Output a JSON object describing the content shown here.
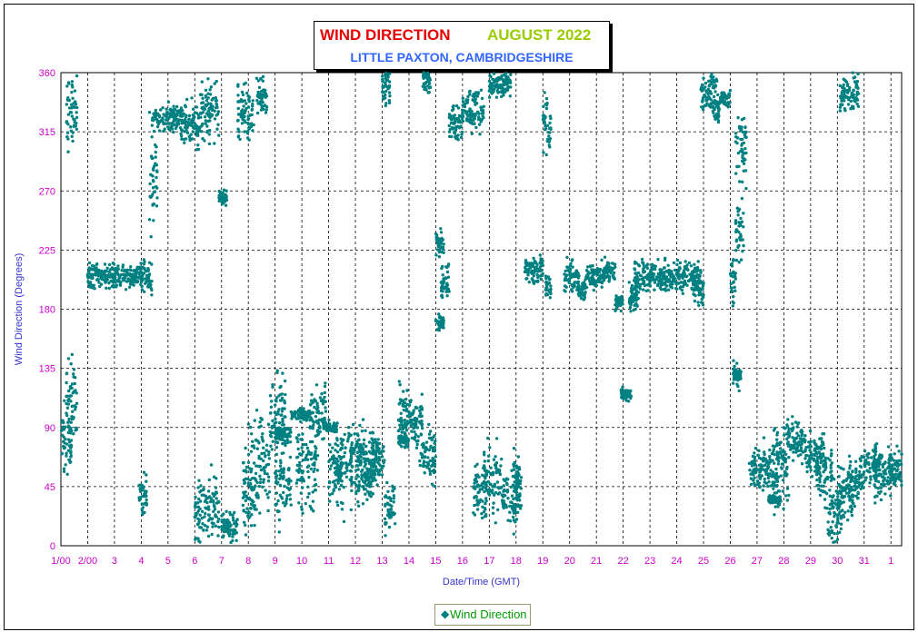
{
  "chart_data": {
    "type": "scatter",
    "title": "WIND DIRECTION",
    "title_month": "AUGUST 2022",
    "subtitle": "LITTLE PAXTON, CAMBRIDGESHIRE",
    "xlabel": "Date/Time (GMT)",
    "ylabel": "Wind Direction (Degrees)",
    "ylim": [
      0,
      360
    ],
    "yticks": [
      0,
      45,
      90,
      135,
      180,
      225,
      270,
      315,
      360
    ],
    "xlim": [
      1,
      32.4
    ],
    "xtick_labels": [
      "1/00",
      "2/00",
      "3",
      "4",
      "5",
      "6",
      "7",
      "8",
      "9",
      "10",
      "11",
      "12",
      "13",
      "14",
      "15",
      "16",
      "17",
      "18",
      "19",
      "20",
      "21",
      "22",
      "23",
      "24",
      "25",
      "26",
      "27",
      "28",
      "29",
      "30",
      "31",
      "1"
    ],
    "grid": true,
    "legend_position": "bottom-center",
    "series": [
      {
        "name": "Wind Direction",
        "color": "#008080",
        "clusters": [
          [
            1.0,
            1.4,
            80,
            25
          ],
          [
            1.2,
            1.6,
            110,
            30
          ],
          [
            1.2,
            1.6,
            330,
            25
          ],
          [
            2.0,
            3.0,
            205,
            10
          ],
          [
            3.0,
            4.0,
            205,
            8
          ],
          [
            4.0,
            4.4,
            205,
            12
          ],
          [
            3.9,
            4.2,
            40,
            15
          ],
          [
            4.3,
            4.6,
            280,
            40
          ],
          [
            4.4,
            5.5,
            325,
            10
          ],
          [
            5.5,
            6.2,
            320,
            15
          ],
          [
            6.2,
            6.9,
            330,
            25
          ],
          [
            6.0,
            6.9,
            30,
            25
          ],
          [
            6.9,
            7.2,
            265,
            5
          ],
          [
            7.0,
            7.6,
            15,
            10
          ],
          [
            7.6,
            8.2,
            330,
            20
          ],
          [
            7.8,
            8.2,
            40,
            30
          ],
          [
            8.0,
            8.8,
            60,
            35
          ],
          [
            8.3,
            8.7,
            340,
            15
          ],
          [
            8.8,
            9.4,
            100,
            30
          ],
          [
            9.0,
            9.6,
            85,
            5
          ],
          [
            9.0,
            9.6,
            50,
            30
          ],
          [
            9.6,
            10.3,
            100,
            5
          ],
          [
            9.8,
            10.6,
            60,
            30
          ],
          [
            10.3,
            10.9,
            100,
            20
          ],
          [
            10.8,
            11.3,
            90,
            3
          ],
          [
            11.0,
            11.5,
            60,
            30
          ],
          [
            11.3,
            11.9,
            60,
            30
          ],
          [
            11.8,
            12.4,
            70,
            20
          ],
          [
            12.0,
            12.6,
            55,
            25
          ],
          [
            12.4,
            12.9,
            60,
            20
          ],
          [
            12.6,
            13.1,
            70,
            15
          ],
          [
            13.0,
            13.3,
            350,
            15
          ],
          [
            13.1,
            13.5,
            30,
            20
          ],
          [
            13.6,
            14.0,
            100,
            20
          ],
          [
            13.6,
            14.0,
            80,
            5
          ],
          [
            14.0,
            14.5,
            95,
            20
          ],
          [
            14.4,
            15.0,
            70,
            20
          ],
          [
            14.5,
            14.8,
            360,
            15
          ],
          [
            15.0,
            15.3,
            170,
            5
          ],
          [
            15.0,
            15.3,
            230,
            10
          ],
          [
            15.2,
            15.5,
            200,
            15
          ],
          [
            15.5,
            16.0,
            320,
            15
          ],
          [
            16.0,
            16.8,
            330,
            15
          ],
          [
            16.4,
            16.9,
            40,
            20
          ],
          [
            16.8,
            17.5,
            50,
            25
          ],
          [
            17.0,
            17.8,
            350,
            10
          ],
          [
            17.5,
            18.2,
            35,
            20
          ],
          [
            17.9,
            18.2,
            55,
            15
          ],
          [
            18.3,
            19.0,
            210,
            10
          ],
          [
            19.0,
            19.3,
            320,
            20
          ],
          [
            19.1,
            19.3,
            195,
            10
          ],
          [
            19.8,
            20.3,
            205,
            12
          ],
          [
            20.3,
            20.6,
            195,
            10
          ],
          [
            20.6,
            21.3,
            205,
            10
          ],
          [
            21.3,
            21.7,
            210,
            8
          ],
          [
            21.7,
            22.0,
            185,
            5
          ],
          [
            21.9,
            22.3,
            115,
            5
          ],
          [
            22.2,
            22.6,
            190,
            10
          ],
          [
            22.4,
            23.2,
            205,
            12
          ],
          [
            23.2,
            24.0,
            205,
            10
          ],
          [
            24.0,
            24.9,
            205,
            10
          ],
          [
            24.6,
            25.0,
            195,
            10
          ],
          [
            24.9,
            25.5,
            345,
            15
          ],
          [
            25.4,
            25.6,
            330,
            10
          ],
          [
            25.6,
            26.0,
            340,
            5
          ],
          [
            26.0,
            26.2,
            200,
            20
          ],
          [
            26.2,
            26.5,
            240,
            25
          ],
          [
            26.2,
            26.6,
            300,
            30
          ],
          [
            26.1,
            26.4,
            130,
            10
          ],
          [
            26.7,
            27.2,
            55,
            15
          ],
          [
            27.2,
            27.8,
            60,
            20
          ],
          [
            27.4,
            27.9,
            35,
            3
          ],
          [
            27.6,
            28.2,
            60,
            30
          ],
          [
            28.1,
            28.8,
            80,
            15
          ],
          [
            28.8,
            29.5,
            70,
            15
          ],
          [
            29.2,
            29.8,
            55,
            20
          ],
          [
            29.6,
            30.2,
            25,
            25
          ],
          [
            30.0,
            30.6,
            40,
            20
          ],
          [
            30.1,
            30.8,
            345,
            15
          ],
          [
            30.4,
            31.0,
            50,
            20
          ],
          [
            31.0,
            31.6,
            60,
            15
          ],
          [
            31.4,
            32.0,
            55,
            20
          ],
          [
            31.9,
            32.4,
            60,
            15
          ]
        ]
      }
    ]
  }
}
